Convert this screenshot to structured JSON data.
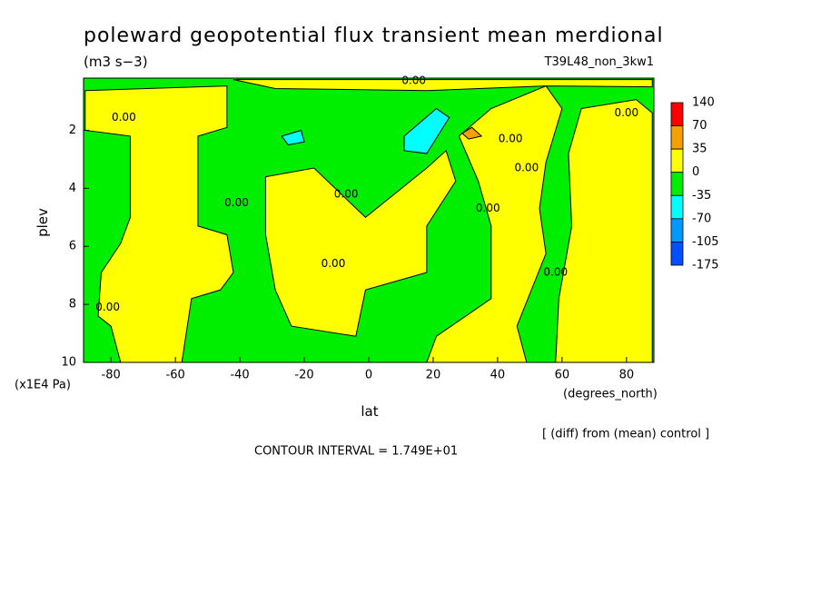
{
  "chart_data": {
    "type": "contour",
    "title": "poleward geopotential flux transient mean merdional",
    "units": "(m3 s−3)",
    "dataset": "T39L48_non_3kw1",
    "x_label": "lat",
    "x_units": "(degrees_north)",
    "y_label": "plev",
    "y_units": "(x1E4 Pa)",
    "note": "[ (diff) from (mean) control ]",
    "contour_interval": "CONTOUR INTERVAL = 1.749E+01",
    "xlim": [
      -88.5,
      88.5
    ],
    "xticks": [
      -80,
      -60,
      -40,
      -20,
      0,
      20,
      40,
      60,
      80
    ],
    "ylim": [
      10,
      0.2
    ],
    "yticks": [
      2,
      4,
      6,
      8,
      10
    ],
    "colorbar": {
      "levels": [
        140,
        70,
        35,
        0,
        -35,
        -70,
        -105,
        -175
      ],
      "colors": [
        "#ff0000",
        "#f5a000",
        "#ffff00",
        "#00ee00",
        "#00ffff",
        "#0099ff",
        "#0050ff"
      ]
    },
    "regions": [
      {
        "color": "#00ee00",
        "points": [
          [
            -88.5,
            10
          ],
          [
            88.5,
            10
          ],
          [
            88.5,
            0.2
          ],
          [
            -88.5,
            0.2
          ]
        ]
      },
      {
        "color": "#ffff00",
        "points": [
          [
            -88,
            0.63
          ],
          [
            -44,
            0.47
          ],
          [
            -44,
            1.9
          ],
          [
            -53,
            2.2
          ],
          [
            -53,
            5.3
          ],
          [
            -44,
            5.6
          ],
          [
            -42,
            6.9
          ],
          [
            -46,
            7.5
          ],
          [
            -55,
            7.8
          ],
          [
            -58,
            10
          ],
          [
            -77,
            10
          ],
          [
            -80,
            8.75
          ],
          [
            -84,
            8.4
          ],
          [
            -83,
            6.9
          ],
          [
            -77,
            5.9
          ],
          [
            -74,
            5
          ],
          [
            -74,
            2.2
          ],
          [
            -88,
            2.0
          ]
        ]
      },
      {
        "color": "#ffff00",
        "points": [
          [
            -32,
            3.6
          ],
          [
            -17,
            3.3
          ],
          [
            -1,
            5
          ],
          [
            18,
            3.3
          ],
          [
            24,
            2.7
          ],
          [
            27,
            3.75
          ],
          [
            18,
            5.3
          ],
          [
            18,
            6.9
          ],
          [
            -1,
            7.5
          ],
          [
            -4,
            9.1
          ],
          [
            -24,
            8.75
          ],
          [
            -29,
            7.5
          ],
          [
            -32,
            5.6
          ]
        ]
      },
      {
        "color": "#ffff00",
        "points": [
          [
            28,
            2.2
          ],
          [
            38,
            1.25
          ],
          [
            55,
            0.47
          ],
          [
            60,
            1.25
          ],
          [
            55,
            3.1
          ],
          [
            53,
            4.7
          ],
          [
            55,
            6.25
          ],
          [
            46,
            8.75
          ],
          [
            49,
            10
          ],
          [
            18,
            10
          ],
          [
            21,
            9.1
          ],
          [
            38,
            7.8
          ],
          [
            38,
            5.3
          ],
          [
            34,
            3.75
          ]
        ]
      },
      {
        "color": "#ffff00",
        "points": [
          [
            66,
            1.25
          ],
          [
            83,
            0.94
          ],
          [
            88,
            1.4
          ],
          [
            88,
            10
          ],
          [
            58,
            10
          ],
          [
            59,
            7.8
          ],
          [
            63,
            5.3
          ],
          [
            62,
            2.8
          ]
        ]
      },
      {
        "color": "#ffff00",
        "points": [
          [
            -42,
            0.25
          ],
          [
            88,
            0.25
          ],
          [
            88,
            0.5
          ],
          [
            55,
            0.47
          ],
          [
            18,
            0.63
          ],
          [
            -29,
            0.56
          ]
        ]
      },
      {
        "color": "#00ffff",
        "points": [
          [
            -27,
            2.2
          ],
          [
            -21,
            2.0
          ],
          [
            -20,
            2.4
          ],
          [
            -25,
            2.5
          ]
        ]
      },
      {
        "color": "#00ffff",
        "points": [
          [
            11,
            2.2
          ],
          [
            21,
            1.25
          ],
          [
            25,
            1.56
          ],
          [
            18,
            2.8
          ],
          [
            11,
            2.7
          ]
        ]
      },
      {
        "color": "#f5a000",
        "points": [
          [
            29,
            2.1
          ],
          [
            32,
            1.9
          ],
          [
            35,
            2.2
          ],
          [
            31,
            2.3
          ]
        ]
      }
    ],
    "contour_labels": [
      {
        "text": "0.00",
        "lat": -76,
        "plev": 1.56
      },
      {
        "text": "0.00",
        "lat": 14,
        "plev": 0.3
      },
      {
        "text": "0.00",
        "lat": 80,
        "plev": 1.4
      },
      {
        "text": "0.00",
        "lat": 44,
        "plev": 2.3
      },
      {
        "text": "0.00",
        "lat": 49,
        "plev": 3.3
      },
      {
        "text": "0.00",
        "lat": 37,
        "plev": 4.7
      },
      {
        "text": "0.00",
        "lat": -41,
        "plev": 4.5
      },
      {
        "text": "0.00",
        "lat": -7,
        "plev": 4.2
      },
      {
        "text": "0.00",
        "lat": -11,
        "plev": 6.6
      },
      {
        "text": "0.00",
        "lat": 58,
        "plev": 6.9
      },
      {
        "text": "0.00",
        "lat": -81,
        "plev": 8.1
      }
    ]
  }
}
